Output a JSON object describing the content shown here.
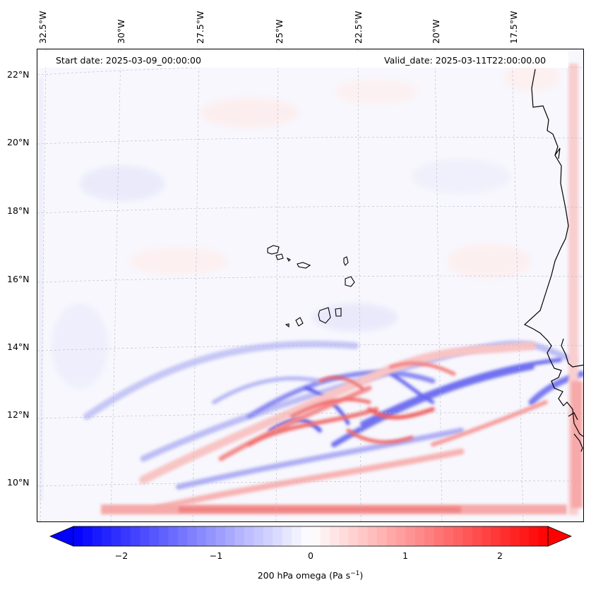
{
  "map": {
    "start_date": "Start date: 2025-03-09_00:00:00",
    "valid_date": "Valid_date: 2025-03-11T22:00:00.00",
    "lat_labels": [
      "22°N",
      "20°N",
      "18°N",
      "16°N",
      "14°N",
      "12°N",
      "10°N"
    ],
    "lon_labels": [
      "32.5°W",
      "30°W",
      "27.5°W",
      "25°W",
      "22.5°W",
      "20°W",
      "17.5°W"
    ],
    "variable": "200 hPa omega",
    "colorbar": {
      "label_prefix": "200 hPa omega (Pa s",
      "label_exp": "−1",
      "label_suffix": ")",
      "ticks": [
        "−2",
        "−1",
        "0",
        "1",
        "2"
      ],
      "range": [
        -2.6,
        2.6
      ],
      "extend": "both",
      "colormap": "bwr",
      "low_color": "#0000ff",
      "mid_color": "#ffffff",
      "high_color": "#ff0000"
    },
    "features": [
      "coastline-west-africa",
      "cape-verde-islands"
    ]
  }
}
